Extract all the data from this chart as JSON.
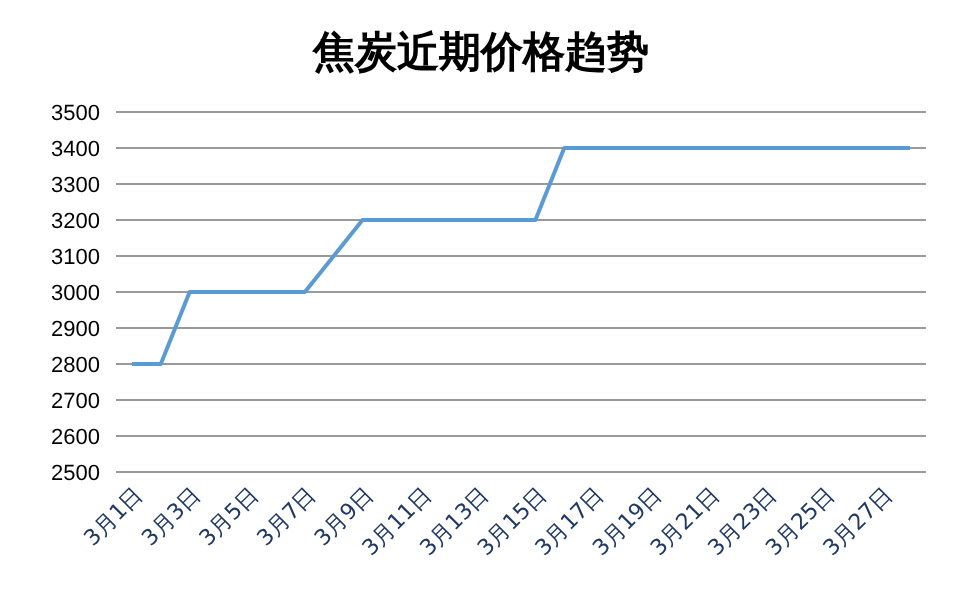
{
  "chart_data": {
    "type": "line",
    "title": "焦炭近期价格趋势",
    "categories": [
      "3月1日",
      null,
      "3月3日",
      null,
      "3月5日",
      null,
      "3月7日",
      null,
      "3月9日",
      null,
      "3月11日",
      null,
      "3月13日",
      null,
      "3月15日",
      null,
      "3月17日",
      null,
      "3月19日",
      null,
      "3月21日",
      null,
      "3月23日",
      null,
      "3月25日",
      null,
      "3月27日",
      null
    ],
    "series": [
      {
        "color": "#5b9bd5",
        "values": [
          2800,
          2800,
          3000,
          3000,
          3000,
          3000,
          3000,
          3100,
          3200,
          3200,
          3200,
          3200,
          3200,
          3200,
          3200,
          3400,
          3400,
          3400,
          3400,
          3400,
          3400,
          3400,
          3400,
          3400,
          3400,
          3400,
          3400,
          3400
        ]
      }
    ],
    "ylim": [
      2500,
      3500
    ],
    "yticks": [
      2500,
      2600,
      2700,
      2800,
      2900,
      3000,
      3100,
      3200,
      3300,
      3400,
      3500
    ],
    "grid": "y",
    "legend": false,
    "marker": "none",
    "line_style": "solid"
  }
}
